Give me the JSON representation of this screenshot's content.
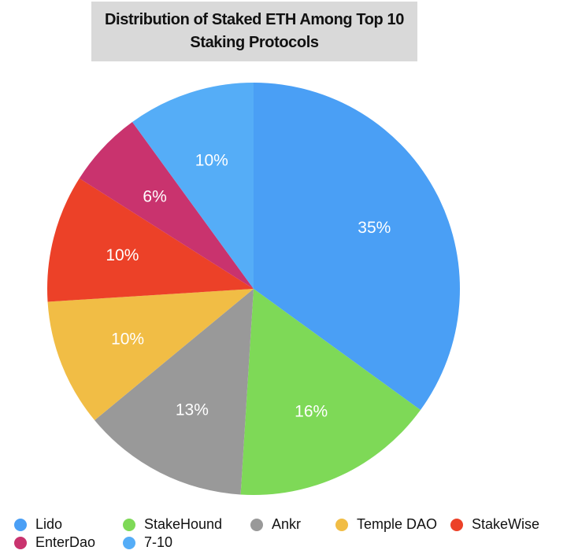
{
  "chart_data": {
    "type": "pie",
    "title": "Distribution of Staked ETH Among Top 10 Staking Protocols",
    "labels": [
      "Lido",
      "StakeHound",
      "Ankr",
      "Temple DAO",
      "StakeWise",
      "EnterDao",
      "7-10"
    ],
    "values": [
      35,
      16,
      13,
      10,
      10,
      6,
      10
    ],
    "value_labels": [
      "35%",
      "16%",
      "13%",
      "10%",
      "10%",
      "6%",
      "10%"
    ],
    "colors": [
      "#4a9ff5",
      "#7ed957",
      "#999999",
      "#f1bd45",
      "#ec4128",
      "#c9336e",
      "#55adf7"
    ],
    "start_angle": "12 o'clock",
    "direction": "clockwise",
    "legend_position": "bottom"
  }
}
